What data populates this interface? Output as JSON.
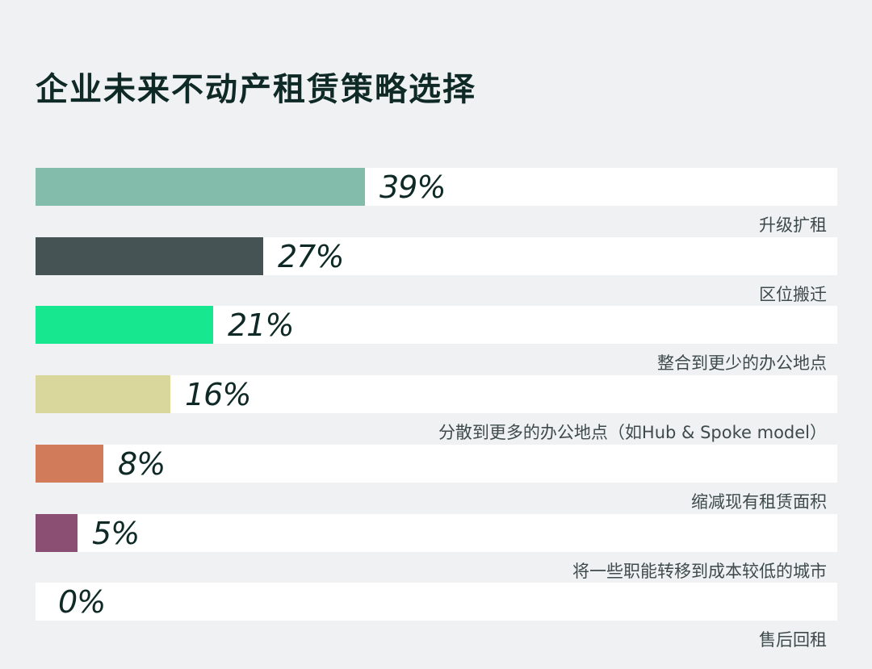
{
  "chart_data": {
    "type": "bar",
    "orientation": "horizontal",
    "title": "企业未来不动产租赁策略选择",
    "xlim": [
      0,
      95
    ],
    "grid": false,
    "legend": "none",
    "categories": [
      "升级扩租",
      "区位搬迁",
      "整合到更少的办公地点",
      "分散到更多的办公地点（如Hub & Spoke model）",
      "缩减现有租赁面积",
      "将一些职能转移到成本较低的城市",
      "售后回租"
    ],
    "values": [
      39,
      27,
      21,
      16,
      8,
      5,
      0
    ],
    "value_labels": [
      "39%",
      "27%",
      "21%",
      "16%",
      "8%",
      "5%",
      "0%"
    ],
    "colors": [
      "#84bcac",
      "#465354",
      "#17e88f",
      "#d9d79b",
      "#d27b5b",
      "#8b4f73",
      "#ffffff"
    ]
  }
}
